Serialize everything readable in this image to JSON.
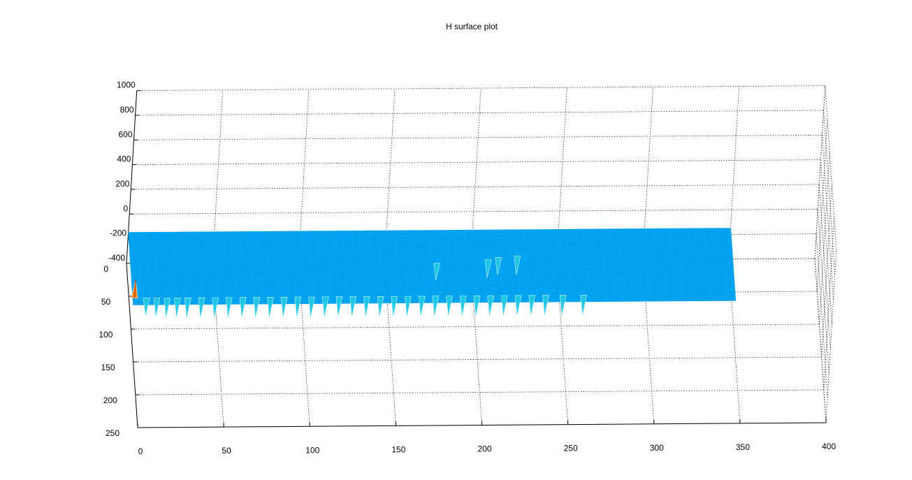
{
  "chart_data": {
    "type": "surface",
    "title": "H surface plot",
    "xlabel": "",
    "ylabel": "",
    "zlabel": "",
    "grid": true,
    "xlim": [
      0,
      400
    ],
    "ylim": [
      0,
      250
    ],
    "zlim": [
      -400,
      1000
    ],
    "x_ticks": [
      0,
      50,
      100,
      150,
      200,
      250,
      300,
      350,
      400
    ],
    "y_ticks": [
      0,
      50,
      100,
      150,
      200,
      250
    ],
    "z_ticks": [
      1000,
      800,
      600,
      400,
      200,
      0,
      -200,
      -400
    ],
    "surface": {
      "x_range": [
        0,
        350
      ],
      "y_range": [
        0,
        110
      ],
      "base_level_z": -150,
      "colors": {
        "base": "#00a0f0",
        "mesh": "#1ec8e6",
        "peak_high": "#ff8c00",
        "peak_top": "#c83200"
      }
    },
    "peaks": [
      {
        "x": 1,
        "y": 100,
        "z": 0
      },
      {
        "x": 8,
        "y": 100,
        "z": -300
      },
      {
        "x": 14,
        "y": 100,
        "z": -310
      },
      {
        "x": 20,
        "y": 100,
        "z": -315
      },
      {
        "x": 26,
        "y": 100,
        "z": -315
      },
      {
        "x": 32,
        "y": 100,
        "z": -320
      },
      {
        "x": 40,
        "y": 100,
        "z": -320
      },
      {
        "x": 48,
        "y": 100,
        "z": -320
      },
      {
        "x": 56,
        "y": 100,
        "z": -320
      },
      {
        "x": 64,
        "y": 100,
        "z": -320
      },
      {
        "x": 72,
        "y": 100,
        "z": -320
      },
      {
        "x": 80,
        "y": 100,
        "z": -320
      },
      {
        "x": 88,
        "y": 100,
        "z": -320
      },
      {
        "x": 96,
        "y": 100,
        "z": -320
      },
      {
        "x": 104,
        "y": 100,
        "z": -320
      },
      {
        "x": 112,
        "y": 100,
        "z": -320
      },
      {
        "x": 120,
        "y": 100,
        "z": -320
      },
      {
        "x": 128,
        "y": 100,
        "z": -320
      },
      {
        "x": 136,
        "y": 100,
        "z": -320
      },
      {
        "x": 144,
        "y": 100,
        "z": -320
      },
      {
        "x": 152,
        "y": 100,
        "z": -320
      },
      {
        "x": 160,
        "y": 100,
        "z": -320
      },
      {
        "x": 168,
        "y": 100,
        "z": -320
      },
      {
        "x": 176,
        "y": 100,
        "z": -320
      },
      {
        "x": 184,
        "y": 100,
        "z": -320
      },
      {
        "x": 192,
        "y": 100,
        "z": -320
      },
      {
        "x": 200,
        "y": 100,
        "z": -320
      },
      {
        "x": 208,
        "y": 100,
        "z": -320
      },
      {
        "x": 216,
        "y": 100,
        "z": -320
      },
      {
        "x": 224,
        "y": 100,
        "z": -320
      },
      {
        "x": 232,
        "y": 100,
        "z": -320
      },
      {
        "x": 240,
        "y": 100,
        "z": -320
      },
      {
        "x": 250,
        "y": 100,
        "z": -320
      },
      {
        "x": 262,
        "y": 100,
        "z": -320
      },
      {
        "x": 178,
        "y": 50,
        "z": -290
      },
      {
        "x": 208,
        "y": 45,
        "z": -300
      },
      {
        "x": 214,
        "y": 42,
        "z": -290
      },
      {
        "x": 225,
        "y": 40,
        "z": -300
      }
    ]
  }
}
